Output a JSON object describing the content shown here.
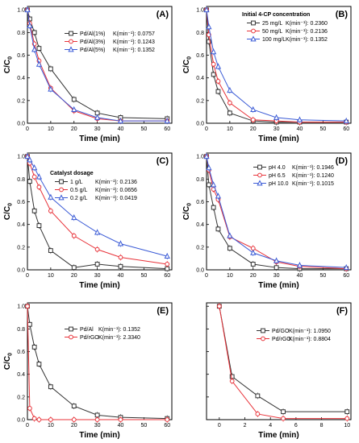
{
  "chart_data": [
    {
      "panel": "(A)",
      "type": "line",
      "xlabel": "Time (min)",
      "ylabel": "C/C",
      "ylabel_sub": "0",
      "xlim": [
        0,
        62
      ],
      "ylim": [
        0,
        1.03
      ],
      "xticks": [
        0,
        10,
        20,
        30,
        40,
        50,
        60
      ],
      "yticks": [
        0.0,
        0.2,
        0.4,
        0.6,
        0.8,
        1.0
      ],
      "legend_position": "right-middle",
      "series": [
        {
          "name": "Pd/Al(1%)",
          "k_label": "K(min⁻¹): 0.0757",
          "color": "#333333",
          "marker": "square",
          "x": [
            0,
            1,
            3,
            5,
            10,
            20,
            30,
            40,
            60
          ],
          "y": [
            1.0,
            0.92,
            0.8,
            0.66,
            0.48,
            0.21,
            0.09,
            0.05,
            0.04
          ]
        },
        {
          "name": "Pd/Al(3%)",
          "k_label": "K(min⁻¹): 0.1243",
          "color": "#e8333a",
          "marker": "circle",
          "x": [
            0,
            1,
            3,
            5,
            10,
            20,
            30,
            40,
            60
          ],
          "y": [
            1.0,
            0.88,
            0.7,
            0.55,
            0.31,
            0.11,
            0.04,
            0.02,
            0.02
          ]
        },
        {
          "name": "Pd/Al(5%)",
          "k_label": "K(min⁻¹): 0.1352",
          "color": "#3b5bd6",
          "marker": "triangle",
          "x": [
            0,
            1,
            3,
            5,
            10,
            20,
            30,
            40,
            60
          ],
          "y": [
            1.0,
            0.86,
            0.65,
            0.52,
            0.3,
            0.12,
            0.05,
            0.02,
            0.02
          ]
        }
      ]
    },
    {
      "panel": "(B)",
      "type": "line",
      "xlabel": "Time (min)",
      "ylabel": "C/C",
      "ylabel_sub": "0",
      "xlim": [
        0,
        62
      ],
      "ylim": [
        0,
        1.03
      ],
      "xticks": [
        0,
        10,
        20,
        30,
        40,
        50,
        60
      ],
      "yticks": [
        0.0,
        0.2,
        0.4,
        0.6,
        0.8,
        1.0
      ],
      "legend_title": "Initial 4-CP concentration",
      "legend_position": "top-right",
      "series": [
        {
          "name": "25 mg/L",
          "k_label": "K(min⁻¹): 0.2360",
          "color": "#333333",
          "marker": "square",
          "x": [
            0,
            1,
            3,
            5,
            10,
            20,
            30,
            40,
            60
          ],
          "y": [
            1.0,
            0.72,
            0.43,
            0.28,
            0.09,
            0.02,
            0.01,
            0.01,
            0.01
          ]
        },
        {
          "name": "50 mg/L",
          "k_label": "K(min⁻¹): 0.2136",
          "color": "#e8333a",
          "marker": "circle",
          "x": [
            0,
            1,
            3,
            5,
            10,
            20,
            30,
            40,
            60
          ],
          "y": [
            1.0,
            0.78,
            0.52,
            0.37,
            0.18,
            0.03,
            0.02,
            0.01,
            0.01
          ]
        },
        {
          "name": "100 mg/L",
          "k_label": "K(min⁻¹): 0.1352",
          "color": "#3b5bd6",
          "marker": "triangle",
          "x": [
            0,
            1,
            3,
            5,
            10,
            20,
            30,
            40,
            60
          ],
          "y": [
            1.0,
            0.85,
            0.63,
            0.5,
            0.29,
            0.12,
            0.05,
            0.03,
            0.02
          ]
        }
      ]
    },
    {
      "panel": "(C)",
      "type": "line",
      "xlabel": "Time (min)",
      "ylabel": "C/C",
      "ylabel_sub": "0",
      "xlim": [
        0,
        62
      ],
      "ylim": [
        0,
        1.03
      ],
      "xticks": [
        0,
        10,
        20,
        30,
        40,
        50,
        60
      ],
      "yticks": [
        0.0,
        0.2,
        0.4,
        0.6,
        0.8,
        1.0
      ],
      "legend_title": "Catalyst dosage",
      "legend_position": "top-right",
      "series": [
        {
          "name": "1 g/L",
          "k_label": "K(min⁻¹): 0.2136",
          "color": "#333333",
          "marker": "square",
          "x": [
            0,
            1,
            3,
            5,
            10,
            20,
            30,
            40,
            60
          ],
          "y": [
            1.0,
            0.78,
            0.52,
            0.39,
            0.17,
            0.02,
            0.05,
            0.03,
            0.01
          ]
        },
        {
          "name": "0.5 g/L",
          "k_label": "K(min⁻¹): 0.0656",
          "color": "#e8333a",
          "marker": "circle",
          "x": [
            0,
            1,
            3,
            5,
            10,
            20,
            30,
            40,
            60
          ],
          "y": [
            1.0,
            0.94,
            0.82,
            0.73,
            0.52,
            0.3,
            0.18,
            0.11,
            0.05
          ]
        },
        {
          "name": "0.2 g/L",
          "k_label": "K(min⁻¹): 0.0419",
          "color": "#3b5bd6",
          "marker": "triangle",
          "x": [
            0,
            1,
            3,
            5,
            10,
            20,
            30,
            40,
            60
          ],
          "y": [
            1.0,
            0.97,
            0.9,
            0.82,
            0.64,
            0.46,
            0.33,
            0.23,
            0.12
          ]
        }
      ]
    },
    {
      "panel": "(D)",
      "type": "line",
      "xlabel": "Time (min)",
      "ylabel": "C/C",
      "ylabel_sub": "0",
      "xlim": [
        0,
        62
      ],
      "ylim": [
        0,
        1.03
      ],
      "xticks": [
        0,
        10,
        20,
        30,
        40,
        50,
        60
      ],
      "yticks": [
        0.0,
        0.2,
        0.4,
        0.6,
        0.8,
        1.0
      ],
      "legend_position": "top-right",
      "series": [
        {
          "name": "pH 4.0",
          "k_label": "K(min⁻¹): 0.1946",
          "color": "#333333",
          "marker": "square",
          "x": [
            0,
            1,
            3,
            5,
            10,
            20,
            30,
            40,
            60
          ],
          "y": [
            1.0,
            0.75,
            0.55,
            0.36,
            0.19,
            0.05,
            0.02,
            0.01,
            0.01
          ]
        },
        {
          "name": "pH 6.5",
          "k_label": "K(min⁻¹): 0.1240",
          "color": "#e8333a",
          "marker": "circle",
          "x": [
            0,
            1,
            3,
            5,
            10,
            20,
            30,
            40,
            60
          ],
          "y": [
            1.0,
            0.88,
            0.71,
            0.62,
            0.29,
            0.19,
            0.07,
            0.03,
            0.01
          ]
        },
        {
          "name": "pH 10.0",
          "k_label": "K(min⁻¹): 0.1015",
          "color": "#3b5bd6",
          "marker": "triangle",
          "x": [
            0,
            1,
            3,
            5,
            10,
            20,
            30,
            40,
            60
          ],
          "y": [
            1.0,
            0.9,
            0.75,
            0.65,
            0.3,
            0.15,
            0.08,
            0.04,
            0.02
          ]
        }
      ]
    },
    {
      "panel": "(E)",
      "type": "line",
      "xlabel": "Time (min)",
      "ylabel": "C/C",
      "ylabel_sub": "0",
      "xlim": [
        0,
        62
      ],
      "ylim": [
        0,
        1.03
      ],
      "xticks": [
        0,
        10,
        20,
        30,
        40,
        50,
        60
      ],
      "yticks": [
        0.0,
        0.2,
        0.4,
        0.6,
        0.8,
        1.0
      ],
      "legend_position": "right-middle",
      "series": [
        {
          "name": "Pd/Al",
          "k_label": "K(min⁻¹): 0.1352",
          "color": "#333333",
          "marker": "square",
          "x": [
            0,
            1,
            3,
            5,
            10,
            20,
            30,
            40,
            60
          ],
          "y": [
            1.0,
            0.84,
            0.64,
            0.49,
            0.29,
            0.12,
            0.04,
            0.02,
            0.01
          ]
        },
        {
          "name": "Pd/rGO",
          "k_label": "K(min⁻¹): 2.3340",
          "color": "#e8333a",
          "marker": "circle",
          "x": [
            0,
            1,
            3,
            5,
            10,
            20,
            30,
            40,
            60
          ],
          "y": [
            1.0,
            0.1,
            0.01,
            0.0,
            0.0,
            0.0,
            0.0,
            0.0,
            0.0
          ]
        }
      ]
    },
    {
      "panel": "(F)",
      "type": "line",
      "xlabel": "Time (min)",
      "ylabel": "",
      "ylabel_sub": "",
      "xlim": [
        -1,
        10.3
      ],
      "ylim": [
        0,
        1.03
      ],
      "xticks": [
        0,
        2,
        4,
        6,
        8,
        10
      ],
      "yticks": [],
      "legend_position": "top-right",
      "series": [
        {
          "name": "Pd/GO",
          "k_label": "K(min⁻¹): 1.0950",
          "color": "#333333",
          "marker": "square",
          "x": [
            0,
            1,
            3,
            5,
            10
          ],
          "y": [
            1.0,
            0.38,
            0.21,
            0.07,
            0.07
          ]
        },
        {
          "name": "Pd/rGO",
          "k_label": "K(min⁻¹): 0.8804",
          "color": "#e8333a",
          "marker": "circle",
          "x": [
            0,
            1,
            3,
            5,
            10
          ],
          "y": [
            1.0,
            0.34,
            0.05,
            0.01,
            0.01
          ]
        }
      ]
    }
  ]
}
